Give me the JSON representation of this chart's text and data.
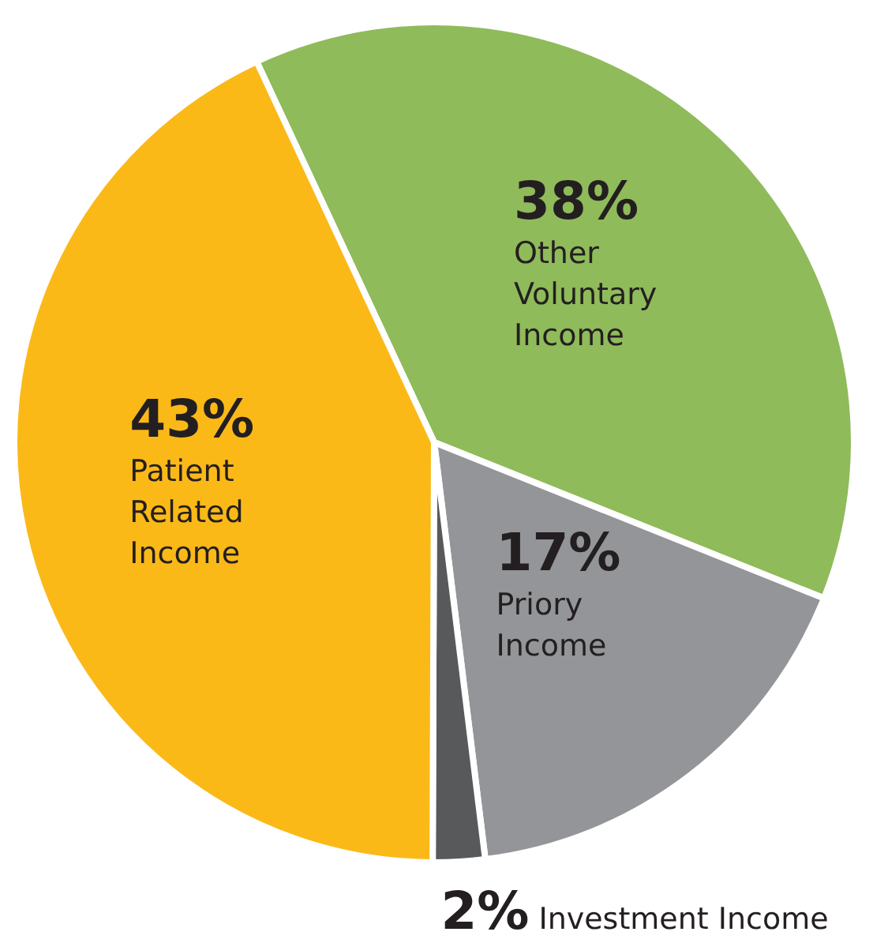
{
  "chart_data": {
    "type": "pie",
    "categories": [
      "Other Voluntary Income",
      "Priory Income",
      "Investment Income",
      "Patient Related Income"
    ],
    "values": [
      38,
      17,
      2,
      43
    ],
    "colors": [
      "#8fbb5a",
      "#939598",
      "#58595b",
      "#fbb918"
    ],
    "value_labels": [
      "38%",
      "17%",
      "2%",
      "43%"
    ]
  }
}
